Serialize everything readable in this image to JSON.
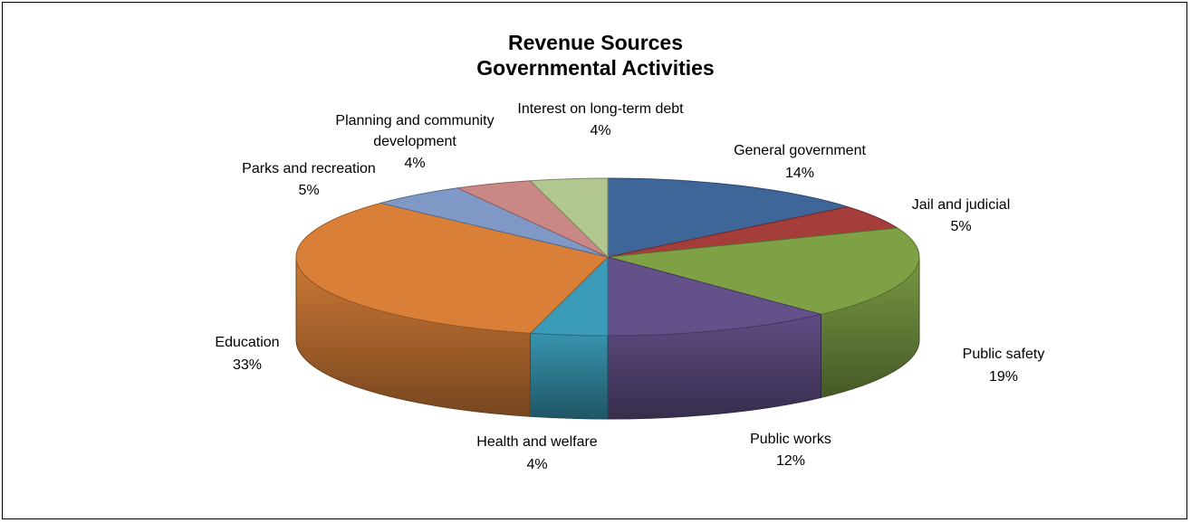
{
  "chart_data": {
    "type": "pie",
    "title": "Revenue Sources",
    "subtitle": "Governmental Activities",
    "slices": [
      {
        "name": "General government",
        "value_label": "14%",
        "value": 14,
        "color": "#3E6699"
      },
      {
        "name": "Jail and judicial",
        "value_label": "5%",
        "value": 5,
        "color": "#A53D3A"
      },
      {
        "name": "Public safety",
        "value_label": "19%",
        "value": 19,
        "color": "#7FA146"
      },
      {
        "name": "Public works",
        "value_label": "12%",
        "value": 12,
        "color": "#64518A"
      },
      {
        "name": "Health and welfare",
        "value_label": "4%",
        "value": 4,
        "color": "#3A9CB8"
      },
      {
        "name": "Education",
        "value_label": "33%",
        "value": 33,
        "color": "#D97F38"
      },
      {
        "name": "Parks and recreation",
        "value_label": "5%",
        "value": 5,
        "color": "#7F98C6"
      },
      {
        "name": "Planning and community development",
        "value_label": "4%",
        "value": 4,
        "color": "#C98885"
      },
      {
        "name": "Interest on long-term debt",
        "value_label": "4%",
        "value": 4,
        "color": "#B2C690"
      }
    ],
    "legend": "none"
  }
}
